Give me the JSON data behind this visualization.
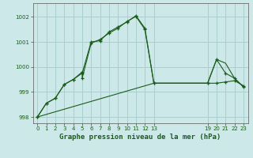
{
  "title": "Graphe pression niveau de la mer (hPa)",
  "bg_color": "#cce8e8",
  "grid_color": "#aacfcf",
  "line_color": "#1a5c1a",
  "xlim": [
    -0.5,
    23.5
  ],
  "ylim": [
    997.75,
    1002.55
  ],
  "yticks": [
    998,
    999,
    1000,
    1001,
    1002
  ],
  "xticks": [
    0,
    1,
    2,
    3,
    4,
    5,
    6,
    7,
    8,
    9,
    10,
    11,
    12,
    13,
    19,
    20,
    21,
    22,
    23
  ],
  "series1_x": [
    0,
    1,
    2,
    3,
    4,
    5,
    6,
    7,
    8,
    9,
    10,
    11,
    12,
    13,
    19,
    20,
    21,
    22,
    23
  ],
  "series1_y": [
    998.0,
    998.55,
    998.75,
    999.3,
    999.5,
    999.75,
    1001.0,
    1001.05,
    1001.4,
    1001.6,
    1001.8,
    1002.05,
    1001.55,
    999.35,
    999.35,
    999.35,
    999.4,
    999.45,
    999.25
  ],
  "series2_x": [
    0,
    1,
    2,
    3,
    4,
    5,
    5,
    6,
    7,
    8,
    9,
    10,
    11,
    12,
    13,
    19,
    20,
    21,
    22,
    23
  ],
  "series2_y": [
    998.0,
    998.55,
    998.75,
    999.3,
    999.5,
    999.8,
    999.55,
    1000.95,
    1001.1,
    1001.35,
    1001.55,
    1001.82,
    1002.02,
    1001.5,
    999.35,
    999.35,
    1000.3,
    999.75,
    999.55,
    999.2
  ],
  "series3_x": [
    0,
    13,
    19,
    20,
    21,
    22,
    23
  ],
  "series3_y": [
    998.0,
    999.35,
    999.35,
    1000.3,
    1000.15,
    999.55,
    999.2
  ]
}
